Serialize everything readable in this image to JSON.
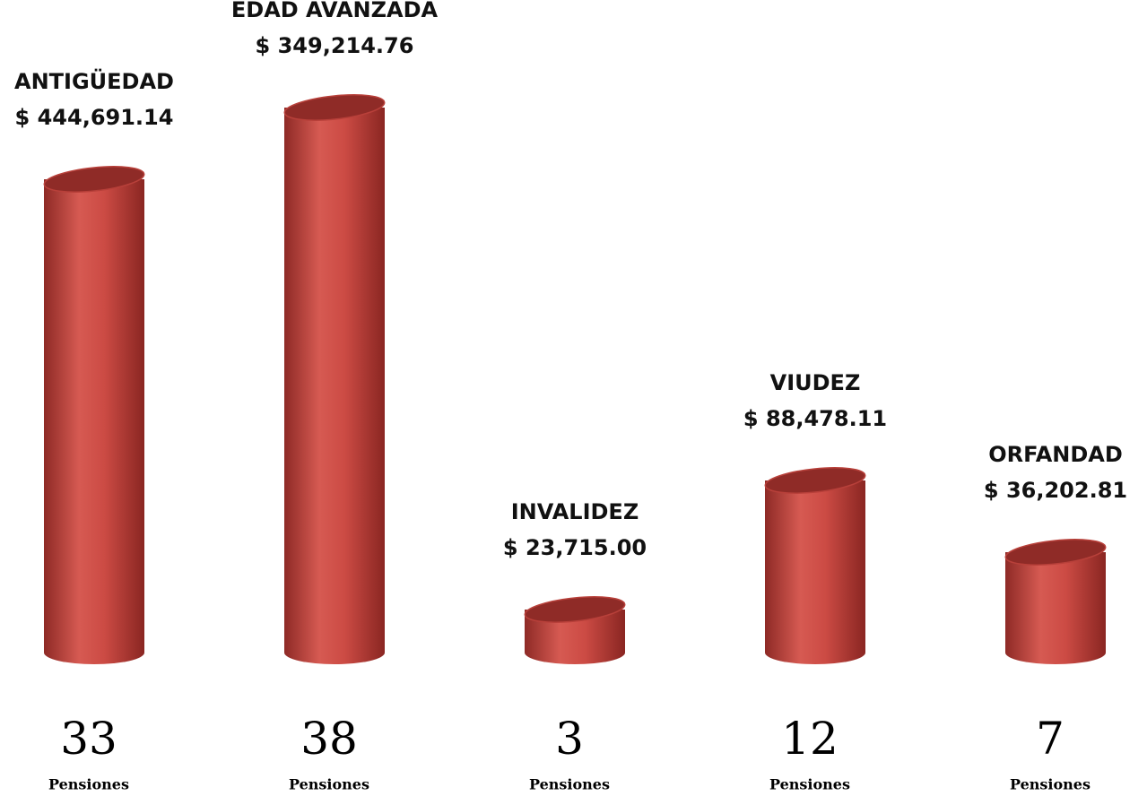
{
  "chart_data": {
    "type": "cylinder",
    "categories": [
      "ANTIGÜEDAD",
      "EDAD AVANZADA",
      "INVALIDEZ",
      "VIUDEZ",
      "ORFANDAD"
    ],
    "amount_labels": [
      "$ 444,691.14",
      "$  349,214.76",
      "$ 23,715.00",
      "$ 88,478.11",
      "$ 36,202.81"
    ],
    "values": [
      33,
      38,
      3,
      12,
      7
    ],
    "unit_label": "Pensiones",
    "color": "#c9463f",
    "ylim": [
      0,
      40
    ]
  }
}
